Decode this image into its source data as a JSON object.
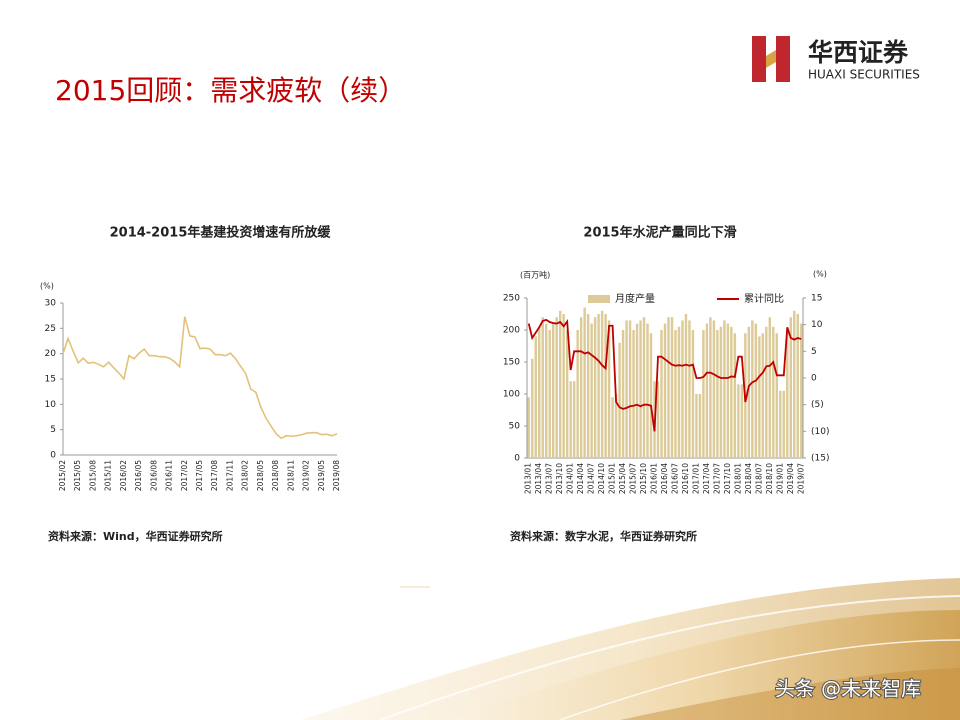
{
  "header": {
    "title": "2015回顾：需求疲软（续）",
    "logo_cn": "华西证券",
    "logo_en": "HUAXI SECURITIES"
  },
  "watermark": "头条 @未来智库",
  "chart_data": [
    {
      "type": "line",
      "title": "2014-2015年基建投资增速有所放缓",
      "y_unit": "(%)",
      "color": "#e2c27a",
      "categories": [
        "2015/02",
        null,
        null,
        "2015/05",
        null,
        null,
        "2015/08",
        null,
        null,
        "2015/11",
        null,
        null,
        "2016/02",
        null,
        null,
        "2016/05",
        null,
        null,
        "2016/08",
        null,
        null,
        "2016/11",
        null,
        null,
        "2017/02",
        null,
        null,
        "2017/05",
        null,
        null,
        "2017/08",
        null,
        null,
        "2017/11",
        null,
        null,
        "2018/02",
        null,
        null,
        "2018/05",
        null,
        null,
        "2018/08",
        null,
        null,
        "2018/11",
        null,
        null,
        "2019/02",
        null,
        null,
        "2019/05",
        null,
        null,
        "2019/08"
      ],
      "values": [
        20,
        23,
        20.5,
        18.2,
        19.1,
        18.1,
        18.3,
        17.9,
        17.4,
        18.3,
        17.2,
        16.2,
        15,
        19.6,
        19,
        20.1,
        20.9,
        19.6,
        19.6,
        19.4,
        19.4,
        19.1,
        18.4,
        17.4,
        27.3,
        23.5,
        23.3,
        21,
        21.1,
        20.9,
        19.8,
        19.8,
        19.6,
        20.1,
        19,
        17.5,
        16.1,
        13,
        12.4,
        9.4,
        7.3,
        5.7,
        4.2,
        3.3,
        3.8,
        3.7,
        3.8,
        4,
        4.3,
        4.4,
        4.4,
        4,
        4.1,
        3.8,
        4.2
      ],
      "ylim": [
        0,
        30
      ],
      "yticks": [
        0,
        5,
        10,
        15,
        20,
        25,
        30
      ],
      "source": "资料来源：Wind，华西证券研究所"
    },
    {
      "type": "bar",
      "title": "2015年水泥产量同比下滑",
      "y_unit": "(百万吨)",
      "y2_unit": "(%)",
      "legend": "top",
      "categories": [
        "2013/01",
        null,
        null,
        "2013/04",
        null,
        null,
        "2013/07",
        null,
        null,
        "2013/10",
        null,
        null,
        "2014/01",
        null,
        null,
        "2014/04",
        null,
        null,
        "2014/07",
        null,
        null,
        "2014/10",
        null,
        null,
        "2015/01",
        null,
        null,
        "2015/04",
        null,
        null,
        "2015/07",
        null,
        null,
        "2015/10",
        null,
        null,
        "2016/01",
        null,
        null,
        "2016/04",
        null,
        null,
        "2016/07",
        null,
        null,
        "2016/10",
        null,
        null,
        "2017/01",
        null,
        null,
        "2017/04",
        null,
        null,
        "2017/07",
        null,
        null,
        "2017/10",
        null,
        null,
        "2018/01",
        null,
        null,
        "2018/04",
        null,
        null,
        "2018/07",
        null,
        null,
        "2018/10",
        null,
        null,
        "2019/01",
        null,
        null,
        "2019/04",
        null,
        null,
        "2019/07"
      ],
      "series": [
        {
          "name": "月度产量",
          "type": "bar",
          "color": "#dccb99",
          "values": [
            95,
            155,
            190,
            205,
            220,
            210,
            200,
            210,
            220,
            230,
            225,
            200,
            120,
            120,
            200,
            220,
            235,
            225,
            210,
            220,
            225,
            230,
            225,
            215,
            95,
            100,
            180,
            200,
            215,
            215,
            200,
            210,
            215,
            220,
            210,
            195,
            120,
            120,
            200,
            210,
            220,
            220,
            200,
            205,
            215,
            225,
            215,
            200,
            100,
            100,
            200,
            210,
            220,
            215,
            200,
            205,
            215,
            210,
            205,
            195,
            115,
            115,
            195,
            205,
            215,
            210,
            190,
            195,
            205,
            220,
            205,
            195,
            105,
            105,
            200,
            220,
            230,
            225,
            210
          ]
        },
        {
          "name": "累计同比",
          "type": "line",
          "axis": "y2",
          "color": "#c00000",
          "values": [
            10.2,
            7.5,
            8.5,
            9.5,
            10.7,
            10.9,
            10.5,
            10.3,
            10.2,
            10.5,
            9.7,
            10.6,
            1.5,
            5,
            5,
            5,
            4.6,
            4.8,
            4.3,
            3.8,
            3.2,
            2.4,
            1.8,
            9.8,
            9.8,
            -4.5,
            -5.5,
            -5.8,
            -5.6,
            -5.3,
            -5.2,
            -5,
            -5.3,
            -5,
            -5,
            -5.2,
            -10,
            4,
            4,
            3.5,
            3,
            2.5,
            2.3,
            2.4,
            2.3,
            2.5,
            2.3,
            2.5,
            0,
            0,
            0.2,
            1,
            1,
            0.7,
            0.3,
            0,
            0,
            0,
            0.3,
            0.2,
            4,
            4,
            -4.5,
            -1.5,
            -0.8,
            -0.5,
            0.3,
            1,
            2.2,
            2.3,
            3,
            0.5,
            0.5,
            0.5,
            9.5,
            7.5,
            7.2,
            7.5,
            7.3
          ]
        }
      ],
      "ylim": [
        0,
        250
      ],
      "yticks": [
        0,
        50,
        100,
        150,
        200,
        250
      ],
      "y2lim": [
        -15,
        15
      ],
      "y2ticks": [
        {
          "value": -15,
          "label": "(15)"
        },
        {
          "value": -10,
          "label": "(10)"
        },
        {
          "value": -5,
          "label": "(5)"
        },
        0,
        5,
        10,
        15
      ],
      "source": "资料来源：数字水泥，华西证券研究所"
    }
  ]
}
